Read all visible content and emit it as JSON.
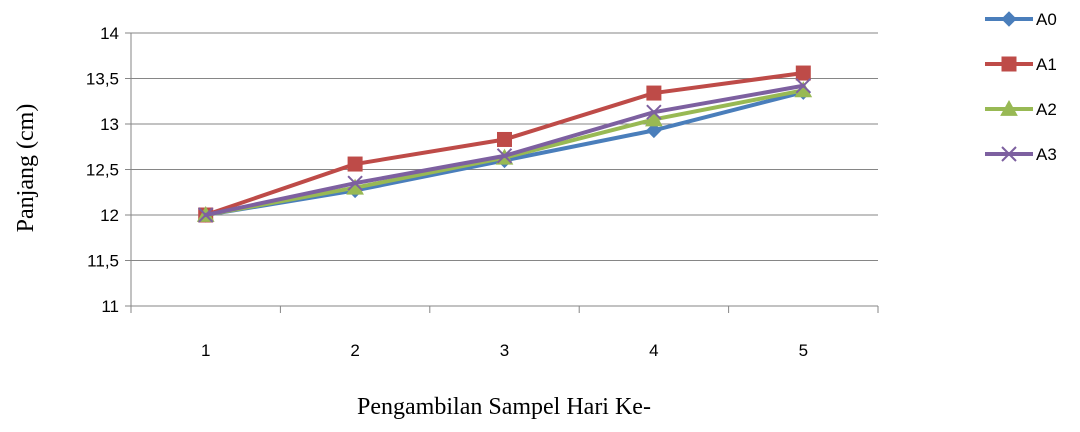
{
  "chart_data": {
    "type": "line",
    "categories": [
      "1",
      "2",
      "3",
      "4",
      "5"
    ],
    "series": [
      {
        "name": "A0",
        "values": [
          12.0,
          12.27,
          12.6,
          12.93,
          13.35
        ],
        "color": "#4a7ebb",
        "marker": "diamond"
      },
      {
        "name": "A1",
        "values": [
          12.0,
          12.56,
          12.83,
          13.34,
          13.56
        ],
        "color": "#be4b48",
        "marker": "square"
      },
      {
        "name": "A2",
        "values": [
          12.0,
          12.3,
          12.63,
          13.05,
          13.37
        ],
        "color": "#98b954",
        "marker": "triangle"
      },
      {
        "name": "A3",
        "values": [
          12.0,
          12.35,
          12.65,
          13.13,
          13.42
        ],
        "color": "#7d60a0",
        "marker": "x"
      }
    ],
    "xlabel": "Pengambilan Sampel Hari Ke-",
    "ylabel": "Panjang (cm)",
    "ylim": [
      11,
      14
    ],
    "yticks": [
      "11",
      "11,5",
      "12",
      "12,5",
      "13",
      "13,5",
      "14"
    ],
    "grid": true,
    "legend_position": "right"
  }
}
